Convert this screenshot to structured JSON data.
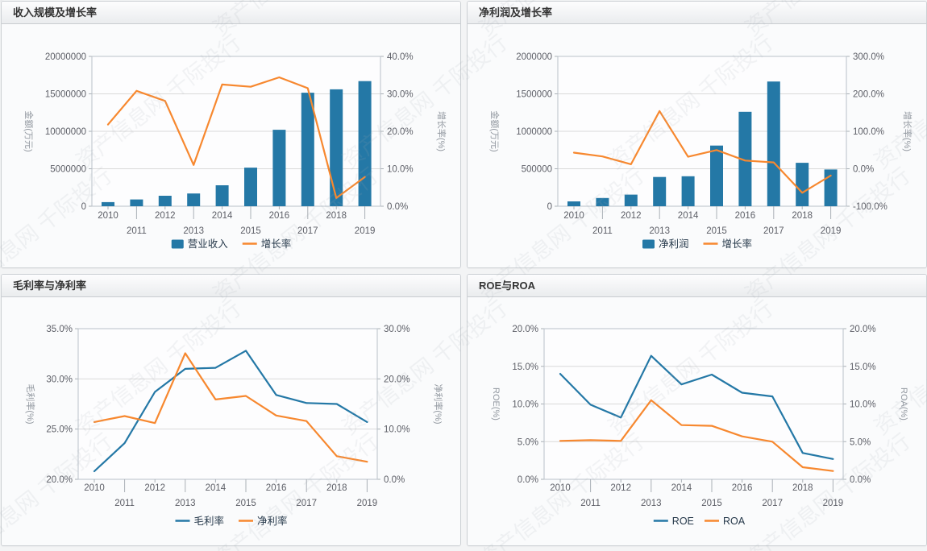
{
  "page": {
    "watermark_text": "资产信息网 千际投行"
  },
  "chart_data": [
    {
      "title": "收入规模及增长率",
      "type": "bar",
      "categories": [
        "2010",
        "2011",
        "2012",
        "2013",
        "2014",
        "2015",
        "2016",
        "2017",
        "2018",
        "2019"
      ],
      "series": [
        {
          "name": "营业收入",
          "type": "bar",
          "axis": "left",
          "color": "#2478a6",
          "values": [
            550000,
            900000,
            1400000,
            1700000,
            2800000,
            5150000,
            10200000,
            15150000,
            15600000,
            16700000
          ]
        },
        {
          "name": "增长率",
          "type": "line",
          "axis": "right",
          "color": "#f7882f",
          "values": [
            21.8,
            30.8,
            28.1,
            11.0,
            32.5,
            31.9,
            34.4,
            31.5,
            2.2,
            7.8
          ]
        }
      ],
      "left_axis": {
        "label": "金额(万元)",
        "min": 0,
        "max": 20000000,
        "step": 5000000,
        "format": "int"
      },
      "right_axis": {
        "label": "增长率(%)",
        "min": 0,
        "max": 40,
        "step": 10,
        "format": "pct1"
      },
      "legend_position": "bottom",
      "grid": "horizontal"
    },
    {
      "title": "净利润及增长率",
      "type": "bar",
      "categories": [
        "2010",
        "2011",
        "2012",
        "2013",
        "2014",
        "2015",
        "2016",
        "2017",
        "2018",
        "2019"
      ],
      "series": [
        {
          "name": "净利润",
          "type": "bar",
          "axis": "left",
          "color": "#2478a6",
          "values": [
            65000,
            110000,
            155000,
            390000,
            400000,
            810000,
            1260000,
            1665000,
            580000,
            490000
          ]
        },
        {
          "name": "增长率",
          "type": "line",
          "axis": "right",
          "color": "#f7882f",
          "values": [
            43,
            33,
            12,
            154,
            32,
            50,
            22,
            17,
            -64,
            -18
          ]
        }
      ],
      "left_axis": {
        "label": "金额(万元)",
        "min": 0,
        "max": 2000000,
        "step": 500000,
        "format": "int"
      },
      "right_axis": {
        "label": "增长率(%)",
        "min": -100,
        "max": 300,
        "step": 100,
        "format": "pct1"
      },
      "legend_position": "bottom",
      "grid": "horizontal"
    },
    {
      "title": "毛利率与净利率",
      "type": "line",
      "categories": [
        "2010",
        "2011",
        "2012",
        "2013",
        "2014",
        "2015",
        "2016",
        "2017",
        "2018",
        "2019"
      ],
      "series": [
        {
          "name": "毛利率",
          "type": "line",
          "axis": "left",
          "color": "#2478a6",
          "values": [
            20.8,
            23.6,
            28.7,
            31.0,
            31.1,
            32.8,
            28.4,
            27.6,
            27.5,
            25.7
          ]
        },
        {
          "name": "净利率",
          "type": "line",
          "axis": "right",
          "color": "#f7882f",
          "values": [
            11.4,
            12.6,
            11.2,
            25.1,
            15.9,
            16.6,
            12.7,
            11.6,
            4.6,
            3.5
          ]
        }
      ],
      "left_axis": {
        "label": "毛利率(%)",
        "min": 20,
        "max": 35,
        "step": 5,
        "format": "pct1"
      },
      "right_axis": {
        "label": "净利率(%)",
        "min": 0,
        "max": 30,
        "step": 10,
        "format": "pct1"
      },
      "legend_position": "bottom",
      "grid": "horizontal"
    },
    {
      "title": "ROE与ROA",
      "type": "line",
      "categories": [
        "2010",
        "2011",
        "2012",
        "2013",
        "2014",
        "2015",
        "2016",
        "2017",
        "2018",
        "2019"
      ],
      "series": [
        {
          "name": "ROE",
          "type": "line",
          "axis": "left",
          "color": "#2478a6",
          "values": [
            14.0,
            9.9,
            8.2,
            16.4,
            12.6,
            13.9,
            11.5,
            11.0,
            3.5,
            2.7
          ]
        },
        {
          "name": "ROA",
          "type": "line",
          "axis": "right",
          "color": "#f7882f",
          "values": [
            5.1,
            5.2,
            5.1,
            10.5,
            7.2,
            7.1,
            5.7,
            5.0,
            1.6,
            1.1
          ]
        }
      ],
      "left_axis": {
        "label": "ROE(%)",
        "min": 0,
        "max": 20,
        "step": 5,
        "format": "pct1"
      },
      "right_axis": {
        "label": "ROA(%)",
        "min": 0,
        "max": 20,
        "step": 5,
        "format": "pct1"
      },
      "legend_position": "bottom",
      "grid": "horizontal"
    }
  ],
  "colors": {
    "bar_blue": "#2478a6",
    "line_orange": "#f7882f",
    "gridline": "#d9d9d9",
    "plot_border": "#b9c1c9"
  }
}
